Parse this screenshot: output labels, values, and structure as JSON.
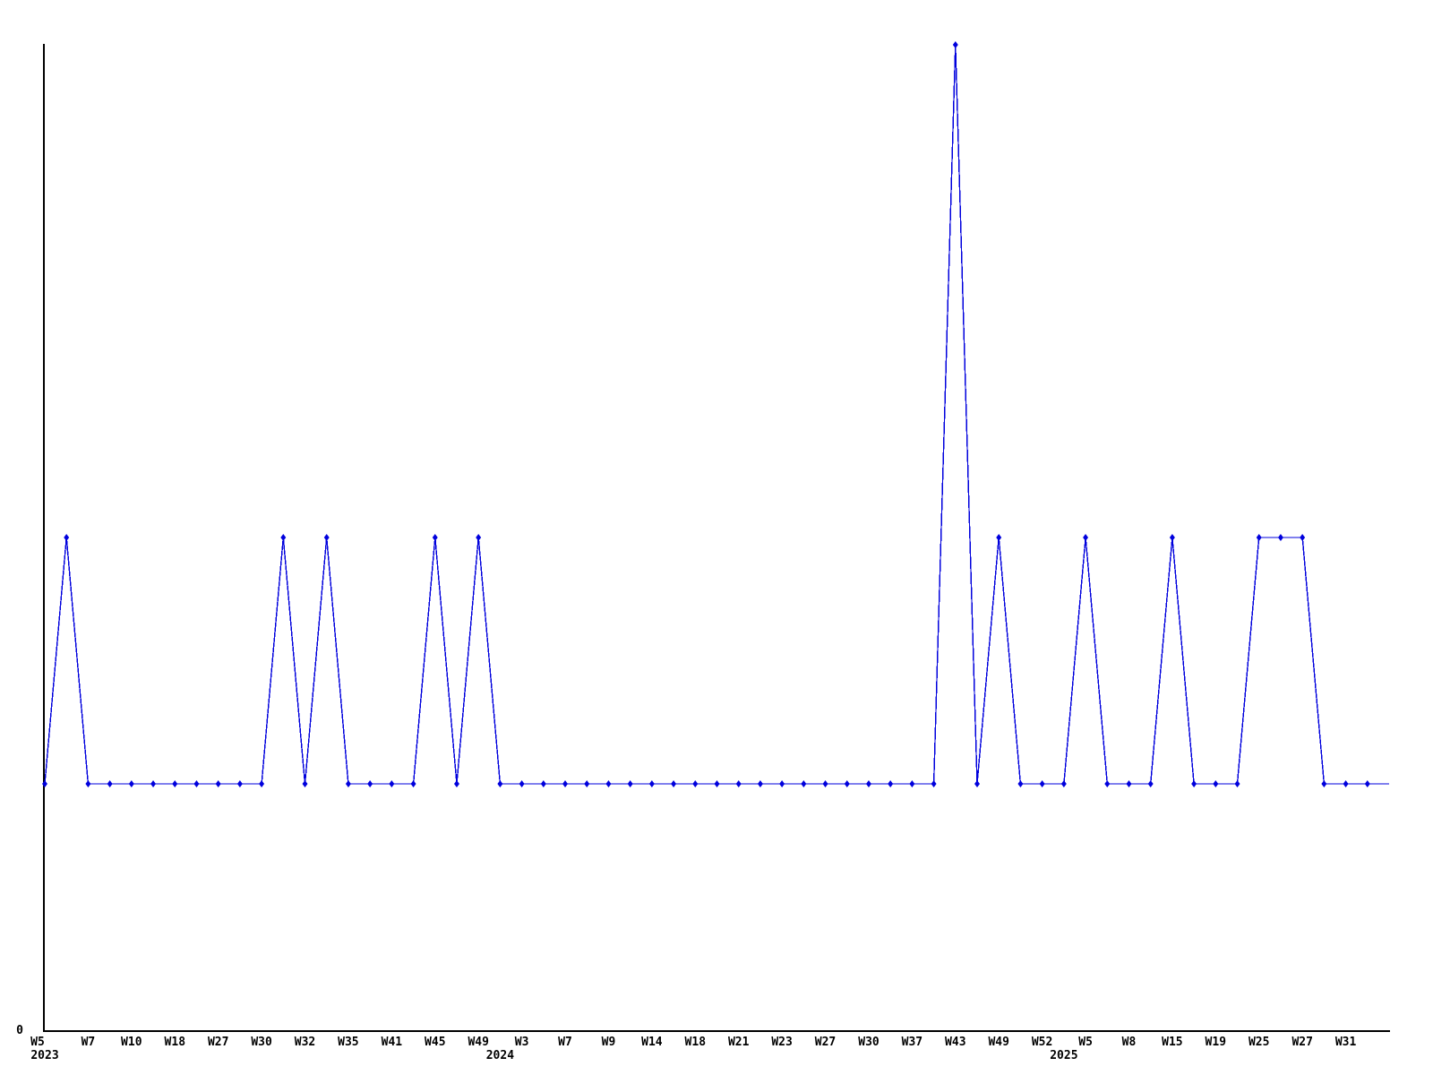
{
  "page": {
    "background": "#ffffff",
    "title": ""
  },
  "chart_data": {
    "type": "line",
    "title": "",
    "xlabel": "",
    "ylabel": "",
    "grid": false,
    "legend": "none",
    "line_color": "#0000dd",
    "marker": "diamond",
    "marker_color": "#0000dd",
    "axis_color": "#000000",
    "ylim": [
      0,
      4
    ],
    "num_points": 63,
    "last_point_marker": false,
    "values": [
      1,
      2,
      1,
      1,
      1,
      1,
      1,
      1,
      1,
      1,
      1,
      2,
      1,
      2,
      1,
      1,
      1,
      1,
      2,
      1,
      2,
      1,
      1,
      1,
      1,
      1,
      1,
      1,
      1,
      1,
      1,
      1,
      1,
      1,
      1,
      1,
      1,
      1,
      1,
      1,
      1,
      1,
      4,
      1,
      2,
      1,
      1,
      1,
      2,
      1,
      1,
      1,
      2,
      1,
      1,
      1,
      2,
      2,
      2,
      1,
      1,
      1,
      1
    ],
    "x_axis": {
      "tick_labels": [
        {
          "index": 0,
          "label": "W5",
          "dx": -8
        },
        {
          "index": 2,
          "label": "W7"
        },
        {
          "index": 4,
          "label": "W10"
        },
        {
          "index": 6,
          "label": "W18"
        },
        {
          "index": 8,
          "label": "W27"
        },
        {
          "index": 10,
          "label": "W30"
        },
        {
          "index": 12,
          "label": "W32"
        },
        {
          "index": 14,
          "label": "W35"
        },
        {
          "index": 16,
          "label": "W41"
        },
        {
          "index": 18,
          "label": "W45"
        },
        {
          "index": 20,
          "label": "W49"
        },
        {
          "index": 22,
          "label": "W3"
        },
        {
          "index": 24,
          "label": "W7"
        },
        {
          "index": 26,
          "label": "W9"
        },
        {
          "index": 28,
          "label": "W14"
        },
        {
          "index": 30,
          "label": "W18"
        },
        {
          "index": 32,
          "label": "W21"
        },
        {
          "index": 34,
          "label": "W23"
        },
        {
          "index": 36,
          "label": "W27"
        },
        {
          "index": 38,
          "label": "W30"
        },
        {
          "index": 40,
          "label": "W37"
        },
        {
          "index": 42,
          "label": "W43"
        },
        {
          "index": 44,
          "label": "W49"
        },
        {
          "index": 46,
          "label": "W52"
        },
        {
          "index": 48,
          "label": "W5"
        },
        {
          "index": 50,
          "label": "W8"
        },
        {
          "index": 52,
          "label": "W15"
        },
        {
          "index": 54,
          "label": "W19"
        },
        {
          "index": 56,
          "label": "W25"
        },
        {
          "index": 58,
          "label": "W27"
        },
        {
          "index": 60,
          "label": "W31"
        }
      ],
      "year_labels": [
        {
          "label": "2023",
          "align_index": 0
        },
        {
          "label": "2024",
          "align_index": 21
        },
        {
          "label": "2025",
          "align_index": 47
        }
      ]
    },
    "y_axis": {
      "visible_tick_labels": [
        "0"
      ],
      "zero_label": "0"
    },
    "notable_points": {
      "tall_spike": {
        "tick_label": "W43",
        "year": "2024",
        "value": 4
      },
      "baseline_value": 1,
      "peak_value": 2
    }
  }
}
